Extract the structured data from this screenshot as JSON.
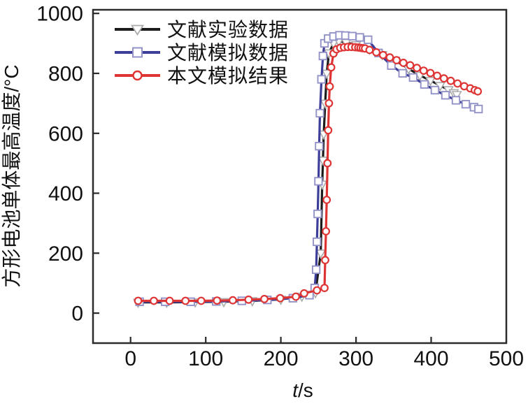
{
  "chart_data": {
    "type": "line",
    "title": "",
    "xlabel": "t/s",
    "xlabel_var": "t",
    "xlabel_unit": "/s",
    "ylabel": "方形电池单体最高温度/°C",
    "xlim": [
      -50,
      500
    ],
    "ylim": [
      -100,
      1012
    ],
    "xticks": [
      0,
      100,
      200,
      300,
      400,
      500
    ],
    "yticks": [
      0,
      200,
      400,
      600,
      800,
      1000
    ],
    "grid": false,
    "legend_position": "top-left",
    "frame_color": "#2b2b2b",
    "series": [
      {
        "name": "文献实验数据",
        "color": "#1c1c1c",
        "marker": "triangle-down",
        "marker_fill": "#fdfdfd",
        "marker_stroke": "#ababab",
        "points": [
          [
            10,
            36
          ],
          [
            48,
            36
          ],
          [
            86,
            37
          ],
          [
            124,
            38
          ],
          [
            162,
            41
          ],
          [
            200,
            46
          ],
          [
            228,
            56
          ],
          [
            246,
            68
          ],
          [
            253,
            200
          ],
          [
            255,
            430
          ],
          [
            256,
            510
          ],
          [
            257,
            597
          ],
          [
            259,
            700
          ],
          [
            261,
            800
          ],
          [
            264,
            868
          ],
          [
            270,
            900
          ],
          [
            277,
            907
          ],
          [
            287,
            903
          ],
          [
            300,
            895
          ],
          [
            318,
            880
          ],
          [
            335,
            862
          ],
          [
            352,
            843
          ],
          [
            370,
            815
          ],
          [
            385,
            793
          ],
          [
            399,
            776
          ],
          [
            412,
            759
          ],
          [
            423,
            745
          ],
          [
            430,
            735
          ],
          [
            434,
            729
          ]
        ]
      },
      {
        "name": "文献模拟数据",
        "color": "#3d3d9a",
        "marker": "square",
        "marker_fill": "#ffffff",
        "marker_stroke": "#9393c8",
        "points": [
          [
            12,
            38
          ],
          [
            46,
            38
          ],
          [
            80,
            38
          ],
          [
            114,
            39
          ],
          [
            148,
            41
          ],
          [
            182,
            44
          ],
          [
            216,
            50
          ],
          [
            238,
            60
          ],
          [
            245,
            84
          ],
          [
            247,
            145
          ],
          [
            248,
            238
          ],
          [
            249,
            331
          ],
          [
            250,
            440
          ],
          [
            251,
            557
          ],
          [
            252,
            667
          ],
          [
            254,
            780
          ],
          [
            256,
            858
          ],
          [
            258,
            900
          ],
          [
            263,
            916
          ],
          [
            270,
            923
          ],
          [
            278,
            927
          ],
          [
            286,
            926
          ],
          [
            295,
            924
          ],
          [
            305,
            920
          ],
          [
            316,
            912
          ],
          [
            330,
            868
          ],
          [
            347,
            826
          ],
          [
            362,
            800
          ],
          [
            376,
            786
          ],
          [
            391,
            763
          ],
          [
            405,
            744
          ],
          [
            419,
            727
          ],
          [
            433,
            710
          ],
          [
            446,
            697
          ],
          [
            457,
            687
          ],
          [
            463,
            681
          ]
        ]
      },
      {
        "name": "本文模拟结果",
        "color": "#df3434",
        "marker": "circle",
        "marker_fill": "#ffffff",
        "marker_stroke": "#df3434",
        "points": [
          [
            10,
            41
          ],
          [
            31,
            41
          ],
          [
            52,
            41
          ],
          [
            73,
            41
          ],
          [
            94,
            41
          ],
          [
            115,
            42
          ],
          [
            136,
            43
          ],
          [
            157,
            45
          ],
          [
            178,
            47
          ],
          [
            199,
            50
          ],
          [
            220,
            55
          ],
          [
            231,
            66
          ],
          [
            248,
            76
          ],
          [
            258,
            84
          ],
          [
            259,
            177
          ],
          [
            260,
            273
          ],
          [
            261,
            378
          ],
          [
            262,
            500
          ],
          [
            263,
            610
          ],
          [
            264,
            700
          ],
          [
            265,
            756
          ],
          [
            267,
            820
          ],
          [
            270,
            866
          ],
          [
            274,
            880
          ],
          [
            279,
            885
          ],
          [
            284,
            887
          ],
          [
            289,
            888
          ],
          [
            294,
            888
          ],
          [
            299,
            887
          ],
          [
            303,
            886
          ],
          [
            306,
            885
          ],
          [
            309,
            884
          ],
          [
            312,
            883
          ],
          [
            318,
            878
          ],
          [
            327,
            870
          ],
          [
            336,
            861
          ],
          [
            345,
            853
          ],
          [
            354,
            844
          ],
          [
            363,
            835
          ],
          [
            372,
            827
          ],
          [
            381,
            818
          ],
          [
            390,
            809
          ],
          [
            399,
            801
          ],
          [
            408,
            792
          ],
          [
            417,
            783
          ],
          [
            426,
            775
          ],
          [
            435,
            766
          ],
          [
            444,
            757
          ],
          [
            452,
            750
          ],
          [
            458,
            744
          ],
          [
            462,
            740
          ]
        ]
      }
    ]
  }
}
